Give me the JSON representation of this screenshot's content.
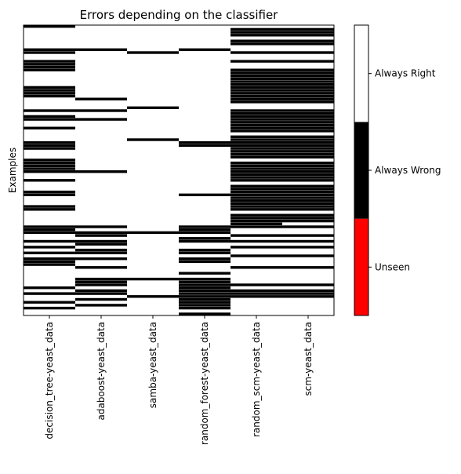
{
  "chart_data": {
    "type": "heatmap",
    "title": "Errors depending on the classifier",
    "xlabel": "",
    "ylabel": "Examples",
    "classifiers": [
      "decision_tree-yeast_data",
      "adaboost-yeast_data",
      "samba-yeast_data",
      "random_forest-yeast_data",
      "random_scm-yeast_data",
      "scm-yeast_data"
    ],
    "colorbar": {
      "labels": [
        "Unseen",
        "Always Wrong",
        "Always Right"
      ],
      "colors": [
        "#ff0000",
        "#000000",
        "#ffffff"
      ],
      "values": [
        -1,
        0,
        1
      ]
    },
    "n_examples": 100,
    "wrong_examples": [
      [
        0,
        8,
        9,
        12,
        13,
        14,
        15,
        21,
        22,
        23,
        24,
        29,
        31,
        32,
        35,
        40,
        41,
        42,
        46,
        47,
        48,
        49,
        50,
        53,
        57,
        58,
        62,
        63,
        69,
        70,
        71,
        74,
        76,
        78,
        80,
        81,
        82,
        90,
        92,
        95,
        97
      ],
      [
        8,
        25,
        29,
        32,
        50,
        69,
        71,
        72,
        74,
        75,
        77,
        78,
        80,
        83,
        87,
        88,
        89,
        91,
        92,
        94,
        96
      ],
      [
        9,
        28,
        39,
        71,
        87,
        93
      ],
      [
        8,
        40,
        41,
        58,
        69,
        70,
        71,
        73,
        74,
        77,
        78,
        80,
        81,
        85,
        87,
        88,
        89,
        90,
        91,
        92,
        93,
        94,
        95,
        96,
        97,
        99
      ],
      [
        1,
        2,
        3,
        5,
        6,
        9,
        12,
        15,
        16,
        17,
        18,
        19,
        20,
        21,
        22,
        23,
        24,
        25,
        26,
        29,
        30,
        31,
        32,
        33,
        34,
        35,
        36,
        38,
        39,
        40,
        41,
        42,
        43,
        44,
        45,
        47,
        48,
        49,
        50,
        51,
        52,
        53,
        55,
        56,
        57,
        58,
        59,
        60,
        61,
        62,
        63,
        65,
        66,
        67,
        68,
        69,
        72,
        74,
        76,
        79,
        83,
        89,
        91,
        92,
        93
      ],
      [
        1,
        2,
        3,
        5,
        6,
        9,
        12,
        15,
        16,
        17,
        18,
        19,
        20,
        21,
        22,
        23,
        24,
        25,
        26,
        29,
        30,
        31,
        32,
        33,
        34,
        35,
        36,
        38,
        39,
        40,
        41,
        42,
        43,
        44,
        45,
        47,
        48,
        49,
        50,
        51,
        52,
        53,
        55,
        56,
        57,
        58,
        59,
        60,
        61,
        62,
        63,
        65,
        66,
        67,
        69,
        72,
        74,
        76,
        79,
        83,
        89,
        91,
        92,
        93
      ]
    ]
  }
}
